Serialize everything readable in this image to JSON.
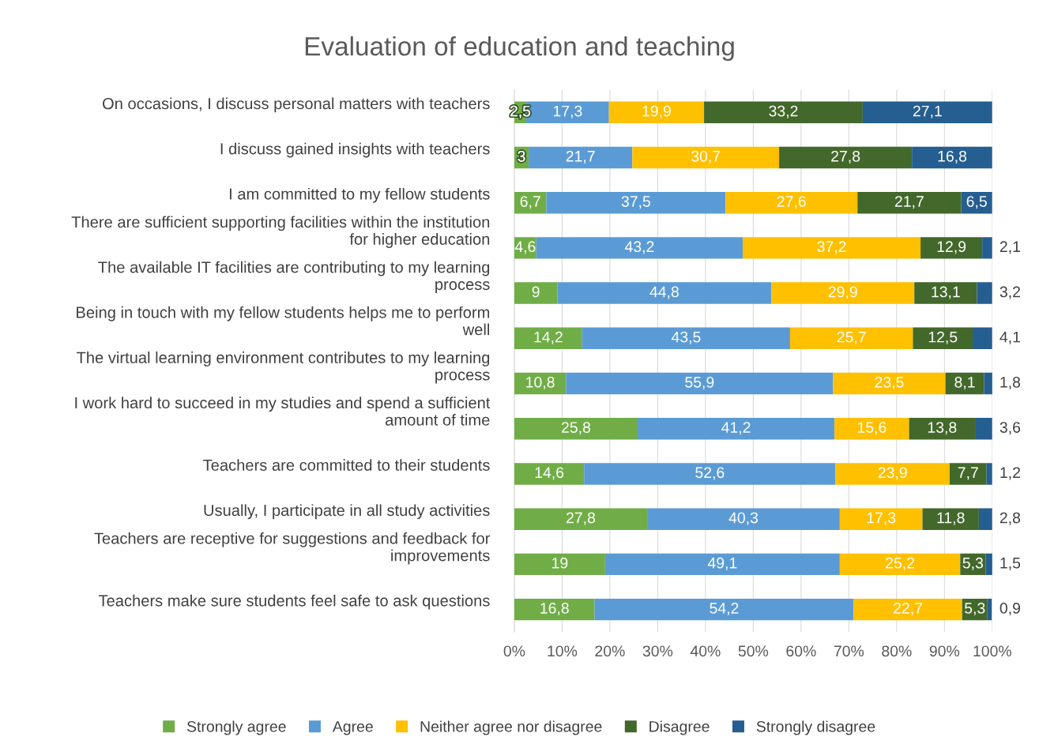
{
  "chart_data": {
    "type": "bar",
    "orientation": "horizontal",
    "stacked": true,
    "title": "Evaluation of education and teaching",
    "categories": [
      "On occasions, I discuss personal matters with teachers",
      "I discuss gained insights with teachers",
      "I am committed to my fellow students",
      "There are sufficient supporting facilities within the institution\nfor higher education",
      "The available IT facilities are contributing to my learning\nprocess",
      "Being in touch with my fellow students helps me to perform\nwell",
      "The virtual learning environment contributes to my learning\nprocess",
      "I work hard to succeed in my studies and spend a sufficient\namount of time",
      "Teachers are committed to their students",
      "Usually, I participate in all study activities",
      "Teachers are receptive for suggestions and feedback for\nimprovements",
      "Teachers make sure students feel safe to ask questions"
    ],
    "series": [
      {
        "name": "Strongly agree",
        "color": "#70ad47",
        "values": [
          2.5,
          3,
          6.7,
          4.6,
          9,
          14.2,
          10.8,
          25.8,
          14.6,
          27.8,
          19,
          16.8
        ],
        "value_labels": [
          "2,5",
          "3",
          "6,7",
          "4,6",
          "9",
          "14,2",
          "10,8",
          "25,8",
          "14,6",
          "27,8",
          "19",
          "16,8"
        ]
      },
      {
        "name": "Agree",
        "color": "#5b9bd5",
        "values": [
          17.3,
          21.7,
          37.5,
          43.2,
          44.8,
          43.5,
          55.9,
          41.2,
          52.6,
          40.3,
          49.1,
          54.2
        ],
        "value_labels": [
          "17,3",
          "21,7",
          "37,5",
          "43,2",
          "44,8",
          "43,5",
          "55,9",
          "41,2",
          "52,6",
          "40,3",
          "49,1",
          "54,2"
        ]
      },
      {
        "name": "Neither agree nor disagree",
        "color": "#ffc000",
        "values": [
          19.9,
          30.7,
          27.6,
          37.2,
          29.9,
          25.7,
          23.5,
          15.6,
          23.9,
          17.3,
          25.2,
          22.7
        ],
        "value_labels": [
          "19,9",
          "30,7",
          "27,6",
          "37,2",
          "29,9",
          "25,7",
          "23,5",
          "15,6",
          "23,9",
          "17,3",
          "25,2",
          "22,7"
        ]
      },
      {
        "name": "Disagree",
        "color": "#43682b",
        "values": [
          33.2,
          27.8,
          21.7,
          12.9,
          13.1,
          12.5,
          8.1,
          13.8,
          7.7,
          11.8,
          5.3,
          5.3
        ],
        "value_labels": [
          "33,2",
          "27,8",
          "21,7",
          "12,9",
          "13,1",
          "12,5",
          "8,1",
          "13,8",
          "7,7",
          "11,8",
          "5,3",
          "5,3"
        ]
      },
      {
        "name": "Strongly disagree",
        "color": "#255e91",
        "values": [
          27.1,
          16.8,
          6.5,
          2.1,
          3.2,
          4.1,
          1.8,
          3.6,
          1.2,
          2.8,
          1.5,
          0.9
        ],
        "value_labels": [
          "27,1",
          "16,8",
          "6,5",
          "2,1",
          "3,2",
          "4,1",
          "1,8",
          "3,6",
          "1,2",
          "2,8",
          "1,5",
          "0,9"
        ]
      }
    ],
    "xlim": [
      0,
      100
    ],
    "xticks": [
      {
        "value": 0,
        "label": "0%"
      },
      {
        "value": 10,
        "label": "10%"
      },
      {
        "value": 20,
        "label": "20%"
      },
      {
        "value": 30,
        "label": "30%"
      },
      {
        "value": 40,
        "label": "40%"
      },
      {
        "value": 50,
        "label": "50%"
      },
      {
        "value": 60,
        "label": "60%"
      },
      {
        "value": 70,
        "label": "70%"
      },
      {
        "value": 80,
        "label": "80%"
      },
      {
        "value": 90,
        "label": "90%"
      },
      {
        "value": 100,
        "label": "100%"
      }
    ],
    "grid": "x",
    "legend": "bottom"
  }
}
